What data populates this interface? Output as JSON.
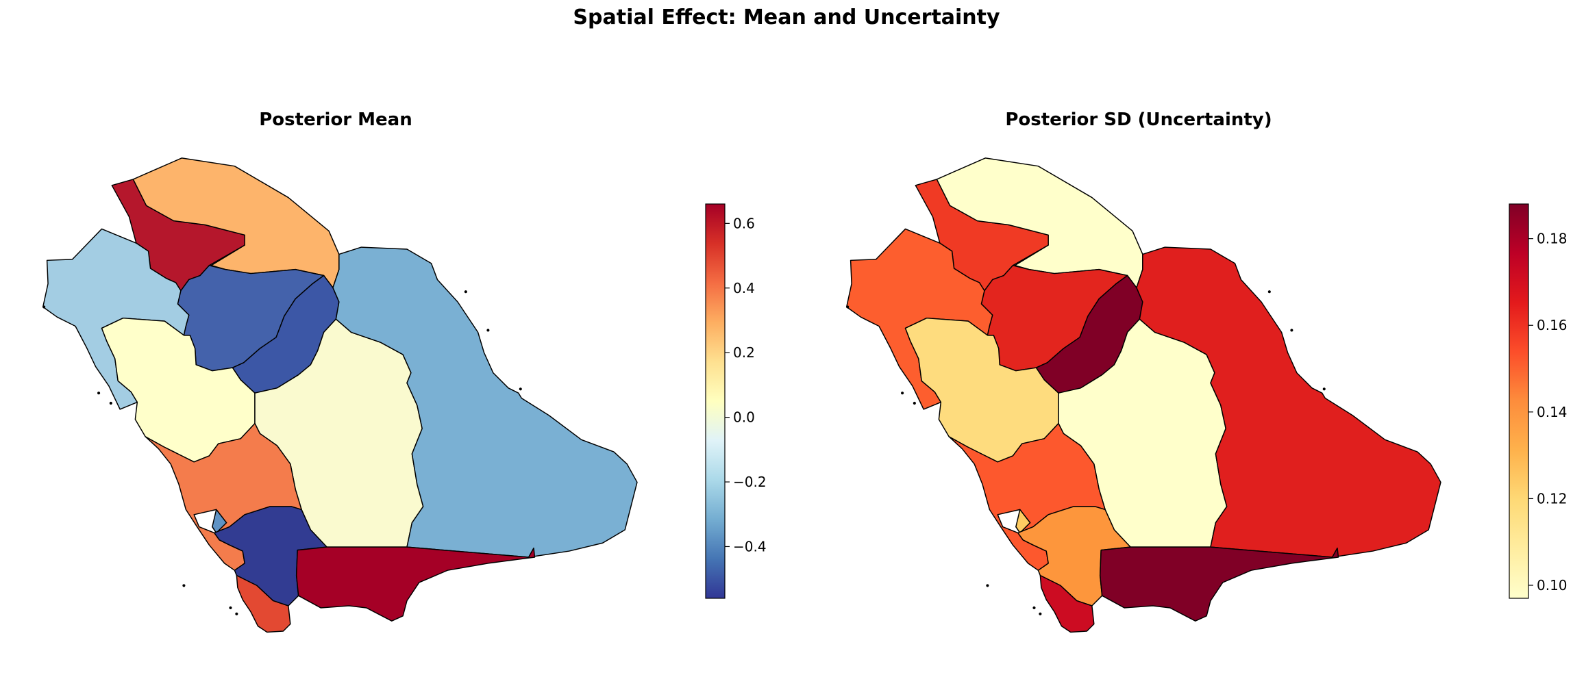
{
  "figure": {
    "suptitle": "Spatial Effect: Mean and Uncertainty"
  },
  "panels": [
    {
      "id": "mean",
      "title": "Posterior Mean",
      "colormap": "RdYlBu_r",
      "colorbar": {
        "min": -0.56,
        "max": 0.66,
        "ticks": [
          -0.4,
          -0.2,
          0.0,
          0.2,
          0.4,
          0.6
        ],
        "tick_labels": [
          "−0.4",
          "−0.2",
          "0.0",
          "0.2",
          "0.4",
          "0.6"
        ]
      },
      "colors": {
        "tabuk": "#b5172c",
        "northern-borders": "#fdb46b",
        "al-jawf": "#a3cde3",
        "hail": "#4462ab",
        "qassim": "#3c57a6",
        "madinah": "#ffffca",
        "riyadh": "#fafacf",
        "eastern-province": "#7ab0d3",
        "makkah": "#f47c4c",
        "al-bahah": "#5f93c5",
        "asir": "#323c92",
        "jazan": "#e34932",
        "najran": "#a50026",
        "outline": "#000000"
      }
    },
    {
      "id": "sd",
      "title": "Posterior SD (Uncertainty)",
      "colormap": "YlOrRd",
      "colorbar": {
        "min": 0.097,
        "max": 0.188,
        "ticks": [
          0.1,
          0.12,
          0.14,
          0.16,
          0.18
        ],
        "tick_labels": [
          "0.10",
          "0.12",
          "0.14",
          "0.16",
          "0.18"
        ]
      },
      "colors": {
        "tabuk": "#f03a24",
        "northern-borders": "#ffffcb",
        "al-jawf": "#fd5e2e",
        "hail": "#e3251e",
        "qassim": "#800026",
        "madinah": "#fedc7e",
        "riyadh": "#ffffcb",
        "eastern-province": "#e01f1e",
        "makkah": "#fd582d",
        "al-bahah": "#fecc62",
        "asir": "#fd963c",
        "jazan": "#cc0c22",
        "najran": "#800026",
        "outline": "#000000"
      }
    }
  ]
}
